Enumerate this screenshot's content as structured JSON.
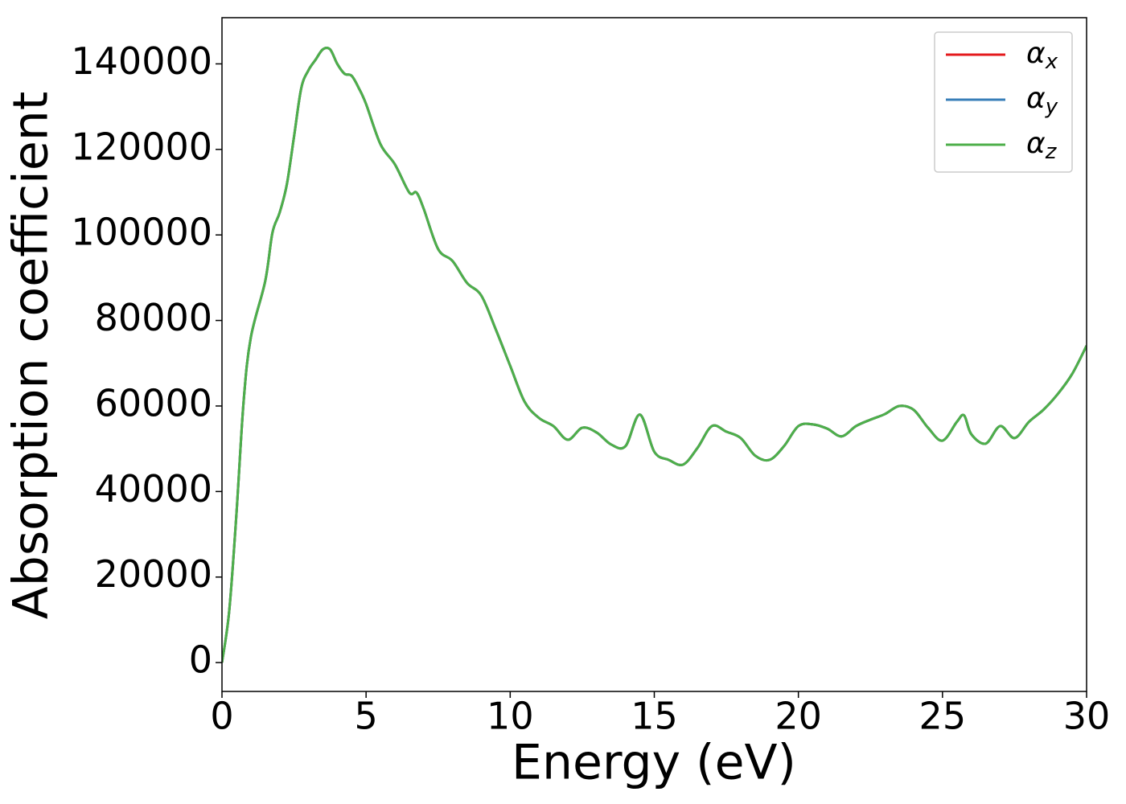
{
  "chart_data": {
    "type": "line",
    "xlabel": "Energy (eV)",
    "ylabel": "Absorption coefficient",
    "x": [
      0,
      0.25,
      0.5,
      0.75,
      1.0,
      1.5,
      1.75,
      2.0,
      2.25,
      2.5,
      2.75,
      3.0,
      3.25,
      3.5,
      3.75,
      4.0,
      4.25,
      4.5,
      4.75,
      5.0,
      5.5,
      6.0,
      6.5,
      6.75,
      7.0,
      7.5,
      8.0,
      8.5,
      9.0,
      9.5,
      10.0,
      10.5,
      11.0,
      11.5,
      12.0,
      12.5,
      13.0,
      13.5,
      14.0,
      14.5,
      15.0,
      15.5,
      16.0,
      16.5,
      17.0,
      17.5,
      18.0,
      18.5,
      19.0,
      19.5,
      20.0,
      20.5,
      21.0,
      21.5,
      22.0,
      22.5,
      23.0,
      23.5,
      24.0,
      24.5,
      25.0,
      25.5,
      25.75,
      26.0,
      26.5,
      27.0,
      27.5,
      28.0,
      28.5,
      29.0,
      29.5,
      30.0
    ],
    "series": [
      {
        "name": "αx",
        "color": "#e41a1c",
        "values": [
          0,
          12000,
          34600,
          61000,
          76000,
          89200,
          100500,
          105200,
          111800,
          123000,
          134300,
          138500,
          141000,
          143400,
          143400,
          140000,
          137700,
          137200,
          134300,
          130600,
          121200,
          116500,
          109900,
          109900,
          106100,
          96700,
          93900,
          88800,
          85800,
          77900,
          69400,
          61000,
          57200,
          55300,
          52100,
          54900,
          53800,
          51000,
          50600,
          58000,
          49300,
          47400,
          46300,
          50200,
          55300,
          54000,
          52500,
          48400,
          47400,
          50600,
          55300,
          55700,
          54700,
          52900,
          55300,
          56800,
          58100,
          60000,
          59100,
          54900,
          51900,
          56300,
          57800,
          53400,
          51200,
          55300,
          52500,
          56300,
          59100,
          62800,
          67500,
          74100
        ]
      },
      {
        "name": "αy",
        "color": "#377eb8",
        "values": [
          0,
          12000,
          34600,
          61000,
          76000,
          89200,
          100500,
          105200,
          111800,
          123000,
          134300,
          138500,
          141000,
          143400,
          143400,
          140000,
          137700,
          137200,
          134300,
          130600,
          121200,
          116500,
          109900,
          109900,
          106100,
          96700,
          93900,
          88800,
          85800,
          77900,
          69400,
          61000,
          57200,
          55300,
          52100,
          54900,
          53800,
          51000,
          50600,
          58000,
          49300,
          47400,
          46300,
          50200,
          55300,
          54000,
          52500,
          48400,
          47400,
          50600,
          55300,
          55700,
          54700,
          52900,
          55300,
          56800,
          58100,
          60000,
          59100,
          54900,
          51900,
          56300,
          57800,
          53400,
          51200,
          55300,
          52500,
          56300,
          59100,
          62800,
          67500,
          74100
        ]
      },
      {
        "name": "αz",
        "color": "#4daf4a",
        "values": [
          0,
          12000,
          34600,
          61000,
          76000,
          89200,
          100500,
          105200,
          111800,
          123000,
          134300,
          138500,
          141000,
          143400,
          143400,
          140000,
          137700,
          137200,
          134300,
          130600,
          121200,
          116500,
          109900,
          109900,
          106100,
          96700,
          93900,
          88800,
          85800,
          77900,
          69400,
          61000,
          57200,
          55300,
          52100,
          54900,
          53800,
          51000,
          50600,
          58000,
          49300,
          47400,
          46300,
          50200,
          55300,
          54000,
          52500,
          48400,
          47400,
          50600,
          55300,
          55700,
          54700,
          52900,
          55300,
          56800,
          58100,
          60000,
          59100,
          54900,
          51900,
          56300,
          57800,
          53400,
          51200,
          55300,
          52500,
          56300,
          59100,
          62800,
          67500,
          74100
        ]
      }
    ],
    "xlim": [
      0,
      30
    ],
    "xticks": [
      0,
      5,
      10,
      15,
      20,
      25,
      30
    ],
    "ylim": [
      -6750,
      150800
    ],
    "yticks": [
      0,
      20000,
      40000,
      60000,
      80000,
      100000,
      120000,
      140000
    ],
    "legend": "upper right",
    "grid": false
  }
}
